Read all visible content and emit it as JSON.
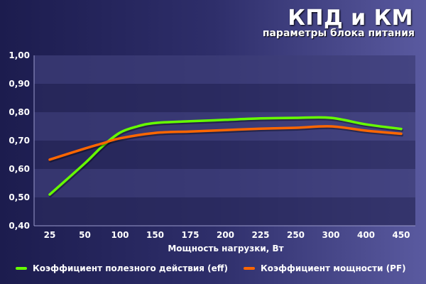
{
  "colors": {
    "eff": "#66ff00",
    "pf": "#ff6600",
    "band_dark": "#2a2a5c",
    "band_light": "#3d3d78"
  },
  "chart_data": {
    "type": "line",
    "title": "КПД и КМ",
    "subtitle": "параметры блока питания",
    "xlabel": "Мощность нагрузки, Вт",
    "ylabel": "",
    "categories": [
      "25",
      "50",
      "100",
      "150",
      "175",
      "200",
      "225",
      "250",
      "300",
      "400",
      "450"
    ],
    "ylim": [
      0.4,
      1.0
    ],
    "yticks": [
      "0,40",
      "0,50",
      "0,60",
      "0,70",
      "0,80",
      "0,90",
      "1,00"
    ],
    "grid": "horizontal bands",
    "legend_position": "bottom",
    "series": [
      {
        "name": "Коэффициент полезного действия (eff)",
        "color": "#66ff00",
        "x": [
          0,
          1,
          1.5,
          2,
          2.5,
          3,
          4,
          5,
          6,
          7,
          8,
          9,
          10
        ],
        "values": [
          0.51,
          0.62,
          0.68,
          0.728,
          0.75,
          0.762,
          0.768,
          0.773,
          0.778,
          0.78,
          0.78,
          0.757,
          0.741
        ]
      },
      {
        "name": "Коэффициент мощности (PF)",
        "color": "#ff6600",
        "x": [
          0,
          1,
          1.5,
          2,
          3,
          4,
          5,
          6,
          7,
          8,
          9,
          10
        ],
        "values": [
          0.633,
          0.672,
          0.69,
          0.708,
          0.727,
          0.732,
          0.737,
          0.742,
          0.745,
          0.75,
          0.735,
          0.724
        ]
      }
    ]
  }
}
